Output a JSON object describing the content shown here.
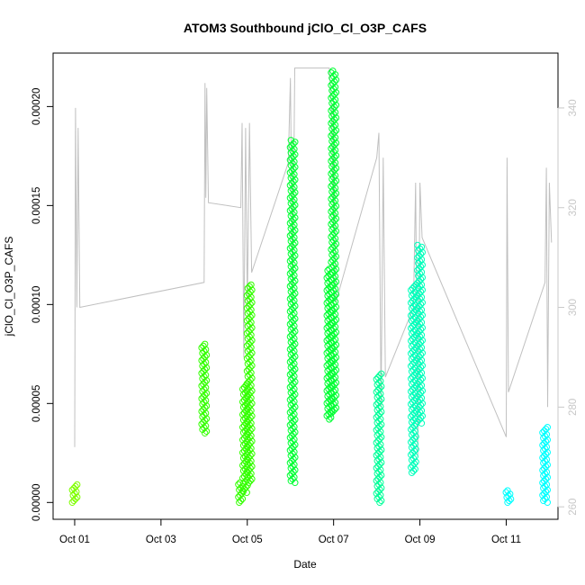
{
  "chart_data": {
    "type": "scatter",
    "title": "ATOM3 Southbound jClO_Cl_O3P_CAFS",
    "xlabel": "Date",
    "ylabel": "jClO_Cl_O3P_CAFS",
    "x_ticks": [
      "Oct 01",
      "Oct 03",
      "Oct 05",
      "Oct 07",
      "Oct 09",
      "Oct 11"
    ],
    "y_ticks": [
      "0.00000",
      "0.00005",
      "0.00010",
      "0.00015",
      "0.00020"
    ],
    "y2_ticks": [
      "260",
      "280",
      "300",
      "320",
      "340"
    ],
    "x_range_days": [
      0.5,
      12.2
    ],
    "ylim": [
      -8.5e-06,
      0.000227
    ],
    "y2lim": [
      257.5,
      351
    ],
    "grid": false,
    "legend": "none",
    "colors": {
      "lime": "#7fff00",
      "green_light": "#33ff00",
      "green": "#00ff33",
      "spring": "#00ff99",
      "aqua_green": "#00ffbb",
      "cyan": "#00ffff",
      "line": "#c0c0c0",
      "right_axis": "#c8c8c8"
    },
    "series": [
      {
        "segments": [
          {
            "x": 1.0,
            "ymin": 0.0,
            "ymax": 9e-06,
            "color": "#7fff00"
          },
          {
            "x": 4.0,
            "ymin": 3.5e-05,
            "ymax": 8e-05,
            "color": "#33ff00"
          },
          {
            "x": 4.85,
            "ymin": 0.0,
            "ymax": 1e-05,
            "color": "#33ff00"
          },
          {
            "x": 4.95,
            "ymin": 5e-06,
            "ymax": 6e-05,
            "color": "#33ff00"
          },
          {
            "x": 5.05,
            "ymin": 1e-05,
            "ymax": 0.00011,
            "color": "#33ff00"
          },
          {
            "x": 6.05,
            "ymin": 1e-05,
            "ymax": 0.000183,
            "color": "#00ff33"
          },
          {
            "x": 6.9,
            "ymin": 4.2e-05,
            "ymax": 0.000118,
            "color": "#00ff33"
          },
          {
            "x": 7.0,
            "ymin": 4.5e-05,
            "ymax": 0.000218,
            "color": "#00ff33"
          },
          {
            "x": 8.05,
            "ymin": 0.0,
            "ymax": 6.5e-05,
            "color": "#00ff99"
          },
          {
            "x": 8.85,
            "ymin": 1.5e-05,
            "ymax": 0.00011,
            "color": "#00ffbb"
          },
          {
            "x": 9.0,
            "ymin": 4e-05,
            "ymax": 0.00013,
            "color": "#00ffbb"
          },
          {
            "x": 11.05,
            "ymin": 0.0,
            "ymax": 6e-06,
            "color": "#00ffff"
          },
          {
            "x": 11.9,
            "ymin": 0.0,
            "ymax": 3.8e-05,
            "color": "#00ffff"
          }
        ]
      },
      {
        "line": [
          [
            1.0,
            272
          ],
          [
            1.02,
            340
          ],
          [
            1.05,
            300
          ],
          [
            1.08,
            336
          ],
          [
            1.12,
            300
          ],
          [
            4.0,
            305
          ],
          [
            4.02,
            345
          ],
          [
            4.04,
            322
          ],
          [
            4.06,
            344
          ],
          [
            4.1,
            321
          ],
          [
            4.85,
            320
          ],
          [
            4.88,
            337
          ],
          [
            4.92,
            290
          ],
          [
            4.96,
            336
          ],
          [
            5.0,
            300
          ],
          [
            5.05,
            337
          ],
          [
            5.1,
            307
          ],
          [
            5.95,
            329
          ],
          [
            6.0,
            346
          ],
          [
            6.05,
            300
          ],
          [
            6.1,
            348
          ],
          [
            6.15,
            348
          ],
          [
            6.9,
            348
          ],
          [
            6.95,
            340
          ],
          [
            7.0,
            316
          ],
          [
            7.0,
            341
          ],
          [
            7.05,
            301
          ],
          [
            8.0,
            330
          ],
          [
            8.05,
            335
          ],
          [
            8.1,
            280
          ],
          [
            8.15,
            330
          ],
          [
            8.2,
            286
          ],
          [
            8.85,
            300
          ],
          [
            8.9,
            325
          ],
          [
            8.95,
            270
          ],
          [
            9.0,
            325
          ],
          [
            9.05,
            314
          ],
          [
            11.0,
            274
          ],
          [
            11.02,
            330
          ],
          [
            11.05,
            283
          ],
          [
            11.9,
            305
          ],
          [
            11.93,
            328
          ],
          [
            11.96,
            280
          ],
          [
            12.0,
            325
          ],
          [
            12.05,
            313
          ]
        ]
      }
    ]
  }
}
